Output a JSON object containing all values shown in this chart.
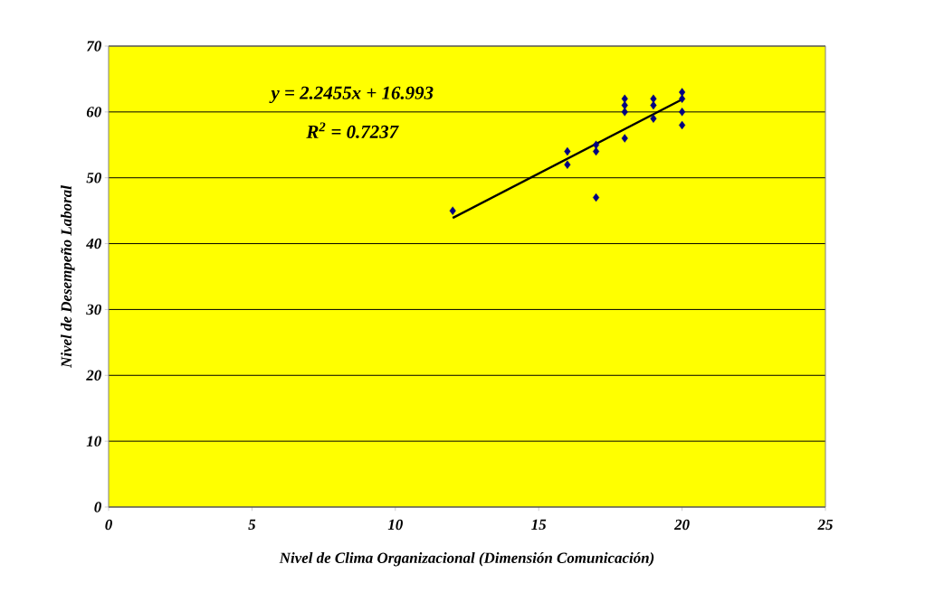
{
  "chart_data": {
    "type": "scatter",
    "xlabel": "Nivel de Clima Organizacional (Dimensión Comunicación)",
    "ylabel": "Nivel de Desempeño Laboral",
    "annotations": [
      "y = 2.2455x + 16.993",
      "R$^{2}$  = 0.7237"
    ],
    "series": [
      {
        "color": "#000080",
        "marker": "diamond",
        "x": [
          12,
          16,
          16,
          17,
          17,
          17,
          18,
          18,
          18,
          18,
          19,
          19,
          19,
          20,
          20,
          20,
          20
        ],
        "values": [
          45,
          54,
          52,
          55,
          54,
          47,
          62,
          61,
          60,
          56,
          62,
          61,
          59,
          63,
          62,
          60,
          58
        ]
      },
      {
        "type": "line",
        "color": "#000000",
        "marker": "none",
        "x": [
          12,
          20
        ],
        "values": [
          43.9,
          61.9
        ]
      }
    ],
    "xlim": [
      0,
      25
    ],
    "xticks": [
      0,
      5,
      10,
      15,
      20,
      25
    ],
    "ylim": [
      0,
      70
    ],
    "yticks": [
      0,
      10,
      20,
      30,
      40,
      50,
      60,
      70
    ],
    "grid": "y"
  }
}
